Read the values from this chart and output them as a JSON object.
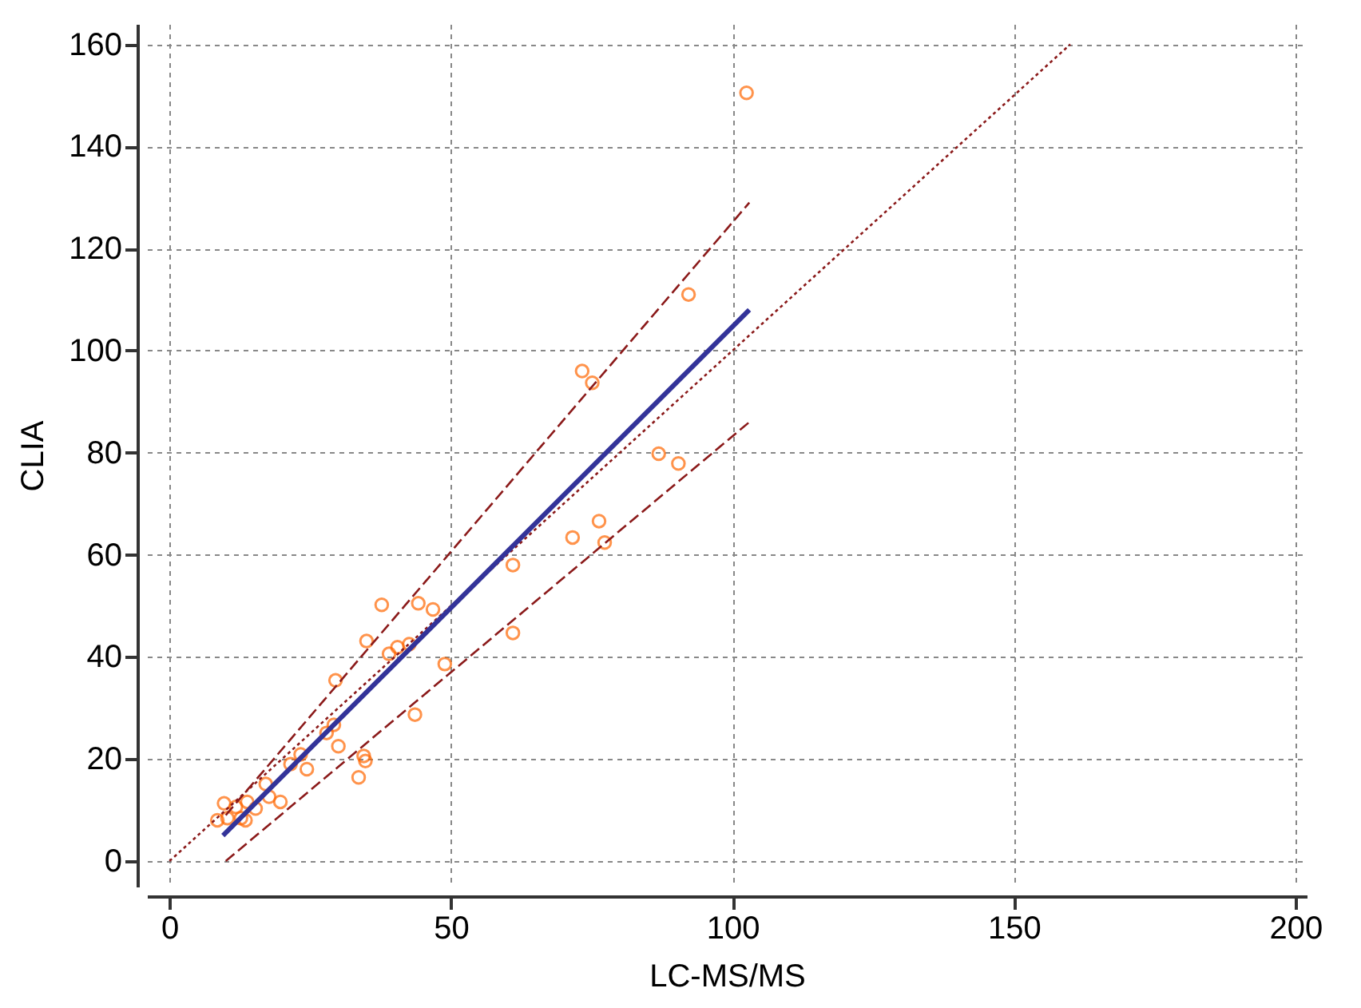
{
  "chart_data": {
    "type": "scatter",
    "xlabel": "LC-MS/MS",
    "ylabel": "CLIA",
    "xlim": [
      -4,
      202
    ],
    "ylim": [
      -5,
      164
    ],
    "xticks": [
      0,
      50,
      100,
      150,
      200
    ],
    "yticks": [
      0,
      20,
      40,
      60,
      80,
      100,
      120,
      140,
      160
    ],
    "grid": true,
    "series": [
      {
        "color": "#ff6600",
        "marker": "circle",
        "x": [
          102.5,
          92.2,
          73.3,
          75.1,
          86.9,
          90.4,
          76.3,
          71.6,
          77.3,
          61,
          61,
          37.7,
          44.2,
          46.8,
          35,
          39,
          40.5,
          42.6,
          48.9,
          43.6,
          29.5,
          29.2,
          27.9,
          30,
          34.5,
          34.8,
          33.6,
          23.3,
          24.4,
          21.5,
          19.7,
          17.1,
          17.7,
          15.3,
          9.7,
          10.3,
          8.5,
          12.7,
          13.5,
          11.8,
          13.8
        ],
        "values": [
          150.5,
          111,
          96,
          93.7,
          79.8,
          77.9,
          66.6,
          63.4,
          62.4,
          58,
          44.7,
          50.2,
          50.5,
          49.3,
          43.1,
          40.6,
          41.9,
          42.5,
          38.6,
          28.7,
          35.4,
          26.7,
          25.1,
          22.5,
          20.6,
          19.6,
          16.4,
          20.9,
          18,
          19,
          11.6,
          15.1,
          12.6,
          10.3,
          11.3,
          8.4,
          8,
          8.4,
          8,
          10.6,
          11.6
        ]
      },
      {
        "type": "line",
        "color": "#8b1a1a",
        "line_style": "dotted",
        "x": [
          0,
          160
        ],
        "values": [
          0,
          160
        ]
      },
      {
        "type": "line",
        "color": "#8b1a1a",
        "line_style": "dashed",
        "x": [
          10,
          103
        ],
        "values": [
          9,
          129
        ]
      },
      {
        "type": "line",
        "color": "#8b1a1a",
        "line_style": "dashed",
        "x": [
          10,
          103
        ],
        "values": [
          0,
          86
        ]
      },
      {
        "type": "line",
        "color": "#333399",
        "line_style": "solid",
        "x": [
          9.5,
          103
        ],
        "values": [
          5,
          108
        ]
      }
    ]
  }
}
